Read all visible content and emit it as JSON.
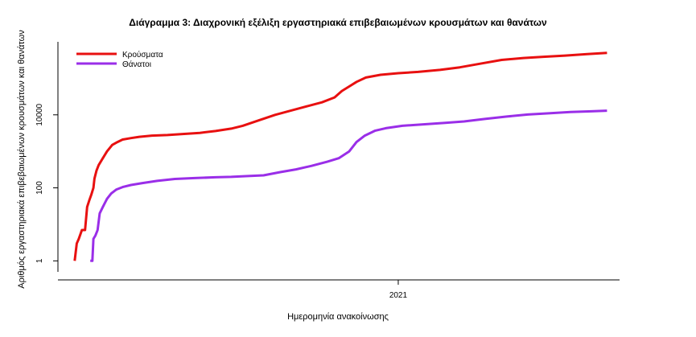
{
  "chart_data": {
    "type": "line",
    "title": "Διάγραμμα 3: Διαχρονική εξέλιξη εργαστηριακά επιβεβαιωμένων κρουσμάτων και θανάτων",
    "xlabel": "Ημερομηνία ανακοίνωσης",
    "ylabel": "Αριθμός εργαστηριακά επιβεβαιωμένων κρουσμάτων και θανάτων",
    "y_scale": "log",
    "ylim": [
      0.5,
      1000000
    ],
    "xlim": [
      "2020-02-10",
      "2021-08-01"
    ],
    "x_ticks": [
      {
        "date": "2021-01-01",
        "label": "2021"
      }
    ],
    "y_ticks": [
      {
        "value": 1,
        "label": "1"
      },
      {
        "value": 100,
        "label": "100"
      },
      {
        "value": 10000,
        "label": "10000"
      }
    ],
    "legend": {
      "position": "top-left"
    },
    "grid": false,
    "series": [
      {
        "name": "Κρούσματα",
        "color": "#e81010",
        "points": [
          [
            "2020-02-26",
            1
          ],
          [
            "2020-02-28",
            3
          ],
          [
            "2020-03-01",
            4
          ],
          [
            "2020-03-04",
            7
          ],
          [
            "2020-03-07",
            7
          ],
          [
            "2020-03-09",
            30
          ],
          [
            "2020-03-11",
            45
          ],
          [
            "2020-03-13",
            65
          ],
          [
            "2020-03-15",
            100
          ],
          [
            "2020-03-16",
            180
          ],
          [
            "2020-03-18",
            300
          ],
          [
            "2020-03-20",
            420
          ],
          [
            "2020-03-24",
            650
          ],
          [
            "2020-03-28",
            1000
          ],
          [
            "2020-04-02",
            1500
          ],
          [
            "2020-04-07",
            1800
          ],
          [
            "2020-04-12",
            2100
          ],
          [
            "2020-04-20",
            2300
          ],
          [
            "2020-04-28",
            2500
          ],
          [
            "2020-05-10",
            2700
          ],
          [
            "2020-05-25",
            2800
          ],
          [
            "2020-06-10",
            3000
          ],
          [
            "2020-06-25",
            3200
          ],
          [
            "2020-07-10",
            3600
          ],
          [
            "2020-07-25",
            4200
          ],
          [
            "2020-08-05",
            5000
          ],
          [
            "2020-08-20",
            7000
          ],
          [
            "2020-09-05",
            10000
          ],
          [
            "2020-09-20",
            13000
          ],
          [
            "2020-10-05",
            17000
          ],
          [
            "2020-10-20",
            22000
          ],
          [
            "2020-11-01",
            30000
          ],
          [
            "2020-11-08",
            45000
          ],
          [
            "2020-11-15",
            60000
          ],
          [
            "2020-11-22",
            80000
          ],
          [
            "2020-12-01",
            105000
          ],
          [
            "2020-12-15",
            125000
          ],
          [
            "2021-01-01",
            138000
          ],
          [
            "2021-01-20",
            150000
          ],
          [
            "2021-02-10",
            170000
          ],
          [
            "2021-03-01",
            200000
          ],
          [
            "2021-03-20",
            250000
          ],
          [
            "2021-04-10",
            320000
          ],
          [
            "2021-05-01",
            360000
          ],
          [
            "2021-05-20",
            390000
          ],
          [
            "2021-06-10",
            420000
          ],
          [
            "2021-07-01",
            460000
          ],
          [
            "2021-07-20",
            500000
          ]
        ]
      },
      {
        "name": "Θάνατοι",
        "color": "#9a2ee8",
        "points": [
          [
            "2020-03-12",
            1
          ],
          [
            "2020-03-14",
            1
          ],
          [
            "2020-03-15",
            4
          ],
          [
            "2020-03-17",
            5
          ],
          [
            "2020-03-19",
            7
          ],
          [
            "2020-03-21",
            20
          ],
          [
            "2020-03-24",
            30
          ],
          [
            "2020-03-28",
            50
          ],
          [
            "2020-04-01",
            70
          ],
          [
            "2020-04-06",
            90
          ],
          [
            "2020-04-12",
            105
          ],
          [
            "2020-04-20",
            120
          ],
          [
            "2020-05-01",
            135
          ],
          [
            "2020-05-15",
            155
          ],
          [
            "2020-06-01",
            175
          ],
          [
            "2020-06-20",
            185
          ],
          [
            "2020-07-10",
            195
          ],
          [
            "2020-07-25",
            200
          ],
          [
            "2020-08-10",
            210
          ],
          [
            "2020-08-25",
            220
          ],
          [
            "2020-09-10",
            270
          ],
          [
            "2020-09-25",
            320
          ],
          [
            "2020-10-10",
            400
          ],
          [
            "2020-10-25",
            520
          ],
          [
            "2020-11-05",
            650
          ],
          [
            "2020-11-15",
            1000
          ],
          [
            "2020-11-22",
            1800
          ],
          [
            "2020-11-30",
            2700
          ],
          [
            "2020-12-10",
            3700
          ],
          [
            "2020-12-20",
            4300
          ],
          [
            "2021-01-05",
            5000
          ],
          [
            "2021-01-25",
            5500
          ],
          [
            "2021-02-15",
            6000
          ],
          [
            "2021-03-05",
            6600
          ],
          [
            "2021-03-25",
            7700
          ],
          [
            "2021-04-15",
            9000
          ],
          [
            "2021-05-05",
            10200
          ],
          [
            "2021-05-25",
            11000
          ],
          [
            "2021-06-15",
            12000
          ],
          [
            "2021-07-05",
            12500
          ],
          [
            "2021-07-20",
            13000
          ]
        ]
      }
    ]
  }
}
